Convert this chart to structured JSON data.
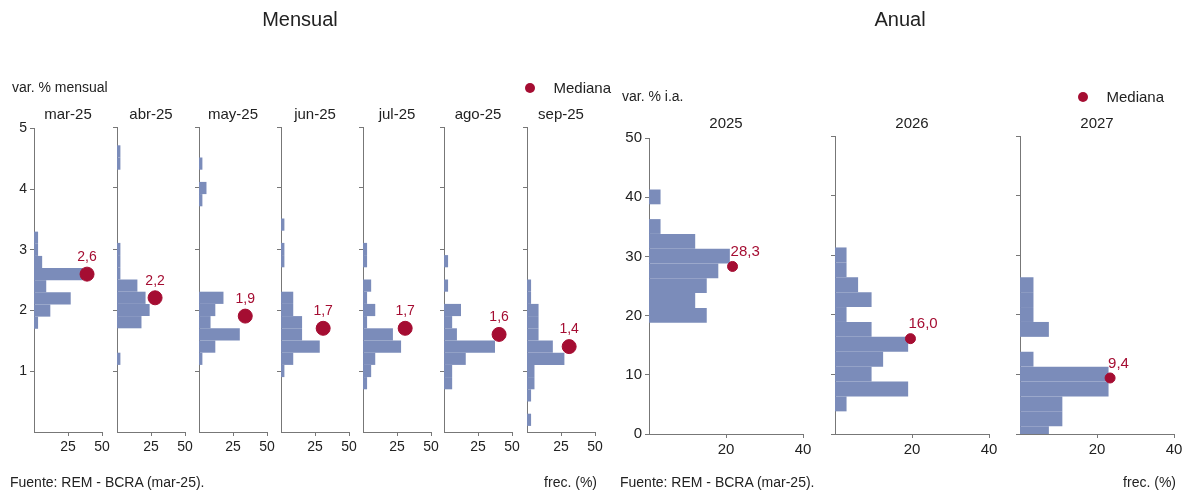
{
  "chart_data": [
    {
      "type": "histogram",
      "orientation": "horizontal",
      "title": "mar-25",
      "ylabel": "var. % mensual",
      "annotations": [
        "Mensual",
        "Fuente: REM - BCRA (mar-25).",
        {
          "text": "2,6",
          "x": 39,
          "y": 2.6
        }
      ],
      "xlim": [
        0,
        50
      ],
      "xticks": [
        25,
        50
      ],
      "ylim": [
        0,
        5
      ],
      "yticks": [
        1,
        2,
        3,
        4,
        5
      ],
      "marker": "circle",
      "series": [
        {
          "color": "#7b8cba",
          "bins": [
            1.7,
            1.9,
            2.1,
            2.3,
            2.5,
            2.7,
            2.9,
            3.1,
            3.3
          ],
          "values": [
            3,
            12,
            27,
            9,
            36,
            6,
            3,
            3
          ]
        },
        {
          "type": "scatter",
          "color": "#a50d32",
          "x": [
            2.6
          ],
          "values": [
            39
          ]
        }
      ]
    },
    {
      "type": "histogram",
      "orientation": "horizontal",
      "title": "abr-25",
      "tick_labels": "x",
      "annotations": [
        {
          "text": "2,2",
          "x": 28,
          "y": 2.2
        }
      ],
      "xlim": [
        0,
        50
      ],
      "xticks": [
        25,
        50
      ],
      "ylim": [
        0,
        5
      ],
      "yticks": [
        1,
        2,
        3,
        4,
        5
      ],
      "marker": "circle",
      "series": [
        {
          "color": "#7b8cba",
          "bins": [
            1.1,
            1.3,
            1.5,
            1.7,
            1.9,
            2.1,
            2.3,
            2.5,
            2.7,
            2.9,
            3.1,
            3.3,
            3.5,
            3.7,
            3.9,
            4.1,
            4.3,
            4.5,
            4.7
          ],
          "values": [
            2.5,
            0,
            0,
            18,
            24,
            21,
            15,
            2.5,
            2.5,
            2.5,
            0,
            0,
            0,
            0,
            0,
            0,
            2.5,
            2.5
          ]
        },
        {
          "type": "scatter",
          "color": "#a50d32",
          "x": [
            2.2
          ],
          "values": [
            28
          ]
        }
      ]
    },
    {
      "type": "histogram",
      "orientation": "horizontal",
      "title": "may-25",
      "tick_labels": "x",
      "annotations": [
        {
          "text": "1,9",
          "x": 34,
          "y": 1.9
        }
      ],
      "xlim": [
        0,
        50
      ],
      "xticks": [
        25,
        50
      ],
      "ylim": [
        0,
        5
      ],
      "yticks": [
        1,
        2,
        3,
        4,
        5
      ],
      "marker": "circle",
      "series": [
        {
          "color": "#7b8cba",
          "bins": [
            1.1,
            1.3,
            1.5,
            1.7,
            1.9,
            2.1,
            2.3,
            2.5,
            2.7,
            2.9,
            3.1,
            3.3,
            3.5,
            3.7,
            3.9,
            4.1,
            4.3,
            4.5
          ],
          "values": [
            2.5,
            12,
            30,
            8.5,
            12,
            18,
            0,
            0,
            0,
            0,
            0,
            0,
            0,
            2.5,
            5.5,
            0,
            2.5
          ]
        },
        {
          "type": "scatter",
          "color": "#a50d32",
          "x": [
            1.9
          ],
          "values": [
            34
          ]
        }
      ]
    },
    {
      "type": "histogram",
      "orientation": "horizontal",
      "title": "jun-25",
      "tick_labels": "x",
      "annotations": [
        {
          "text": "1,7",
          "x": 31,
          "y": 1.7
        }
      ],
      "xlim": [
        0,
        50
      ],
      "xticks": [
        25,
        50
      ],
      "ylim": [
        0,
        5
      ],
      "yticks": [
        1,
        2,
        3,
        4,
        5
      ],
      "marker": "circle",
      "series": [
        {
          "color": "#7b8cba",
          "bins": [
            0.9,
            1.1,
            1.3,
            1.5,
            1.7,
            1.9,
            2.1,
            2.3,
            2.5,
            2.7,
            2.9,
            3.1,
            3.3,
            3.5
          ],
          "values": [
            2.5,
            9,
            28.5,
            15.5,
            15.5,
            9,
            9,
            0,
            0,
            2.5,
            2.5,
            0,
            2.5
          ]
        },
        {
          "type": "scatter",
          "color": "#a50d32",
          "x": [
            1.7
          ],
          "values": [
            31
          ]
        }
      ]
    },
    {
      "type": "histogram",
      "orientation": "horizontal",
      "title": "jul-25",
      "tick_labels": "x",
      "annotations": [
        {
          "text": "1,7",
          "x": 31,
          "y": 1.7
        }
      ],
      "xlim": [
        0,
        50
      ],
      "xticks": [
        25,
        50
      ],
      "ylim": [
        0,
        5
      ],
      "yticks": [
        1,
        2,
        3,
        4,
        5
      ],
      "marker": "circle",
      "series": [
        {
          "color": "#7b8cba",
          "bins": [
            0.7,
            0.9,
            1.1,
            1.3,
            1.5,
            1.7,
            1.9,
            2.1,
            2.3,
            2.5,
            2.7,
            2.9,
            3.1
          ],
          "values": [
            3,
            6,
            9,
            28,
            22,
            3,
            9,
            3,
            6,
            0,
            3,
            3
          ]
        },
        {
          "type": "scatter",
          "color": "#a50d32",
          "x": [
            1.7
          ],
          "values": [
            31
          ]
        }
      ]
    },
    {
      "type": "histogram",
      "orientation": "horizontal",
      "title": "ago-25",
      "tick_labels": "x",
      "annotations": [
        {
          "text": "1,6",
          "x": 40.5,
          "y": 1.6
        }
      ],
      "xlim": [
        0,
        50
      ],
      "xticks": [
        25,
        50
      ],
      "ylim": [
        0,
        5
      ],
      "yticks": [
        1,
        2,
        3,
        4,
        5
      ],
      "marker": "circle",
      "series": [
        {
          "color": "#7b8cba",
          "bins": [
            0.7,
            0.9,
            1.1,
            1.3,
            1.5,
            1.7,
            1.9,
            2.1,
            2.3,
            2.5,
            2.7,
            2.9
          ],
          "values": [
            6,
            6,
            16,
            37.5,
            9.5,
            6,
            12.5,
            0,
            3,
            0,
            3
          ]
        },
        {
          "type": "scatter",
          "color": "#a50d32",
          "x": [
            1.6
          ],
          "values": [
            40.5
          ]
        }
      ]
    },
    {
      "type": "histogram",
      "orientation": "horizontal",
      "title": "sep-25",
      "xlabel": "frec. (%)",
      "legend": "top right",
      "tick_labels": "x",
      "annotations": [
        {
          "text": "1,4",
          "x": 31,
          "y": 1.4
        }
      ],
      "xlim": [
        0,
        50
      ],
      "xticks": [
        25,
        50
      ],
      "ylim": [
        0,
        5
      ],
      "yticks": [
        1,
        2,
        3,
        4,
        5
      ],
      "marker": "circle",
      "series": [
        {
          "color": "#7b8cba",
          "bins": [
            0.1,
            0.3,
            0.5,
            0.7,
            0.9,
            1.1,
            1.3,
            1.5,
            1.7,
            1.9,
            2.1,
            2.3,
            2.5
          ],
          "values": [
            3,
            0,
            3,
            5.5,
            5.5,
            27.5,
            19,
            8.5,
            8.5,
            8.5,
            3,
            3
          ]
        },
        {
          "type": "scatter",
          "name": "Mediana",
          "color": "#a50d32",
          "x": [
            1.4
          ],
          "values": [
            31
          ]
        }
      ]
    },
    {
      "type": "histogram",
      "orientation": "horizontal",
      "title": "2025",
      "ylabel": "var. % i.a.",
      "annotations": [
        "Anual",
        "Fuente: REM - BCRA (mar-25).",
        {
          "text": "28,3",
          "x": 21.7,
          "y": 28.3
        }
      ],
      "xlim": [
        0,
        40
      ],
      "xticks": [
        20,
        40
      ],
      "ylim": [
        0,
        50
      ],
      "yticks": [
        0,
        10,
        20,
        30,
        40,
        50
      ],
      "marker": "circle",
      "series": [
        {
          "color": "#7b8cba",
          "bins": [
            18.8,
            21.3,
            23.8,
            26.3,
            28.8,
            31.3,
            33.8,
            36.3,
            38.8,
            41.3
          ],
          "values": [
            15,
            12,
            15,
            18,
            21,
            12,
            3,
            0,
            3
          ]
        },
        {
          "type": "scatter",
          "color": "#a50d32",
          "x": [
            28.3
          ],
          "values": [
            21.7
          ]
        }
      ]
    },
    {
      "type": "histogram",
      "orientation": "horizontal",
      "title": "2026",
      "tick_labels": "x",
      "annotations": [
        {
          "text": "16,0",
          "x": 19.6,
          "y": 16.0
        }
      ],
      "xlim": [
        0,
        40
      ],
      "xticks": [
        20,
        40
      ],
      "ylim": [
        0,
        50
      ],
      "yticks": [
        0,
        10,
        20,
        30,
        40,
        50
      ],
      "marker": "circle",
      "series": [
        {
          "color": "#7b8cba",
          "bins": [
            3.8,
            6.3,
            8.8,
            11.3,
            13.8,
            16.3,
            18.8,
            21.3,
            23.8,
            26.3,
            28.8,
            31.3
          ],
          "values": [
            3,
            19,
            9.5,
            12.5,
            19,
            9.5,
            3,
            9.5,
            6,
            3,
            3
          ]
        },
        {
          "type": "scatter",
          "color": "#a50d32",
          "x": [
            16.0
          ],
          "values": [
            19.6
          ]
        }
      ]
    },
    {
      "type": "histogram",
      "orientation": "horizontal",
      "title": "2027",
      "xlabel": "frec. (%)",
      "legend": "top right",
      "tick_labels": "x",
      "annotations": [
        {
          "text": "9,4",
          "x": 23.4,
          "y": 9.4
        }
      ],
      "xlim": [
        0,
        40
      ],
      "xticks": [
        20,
        40
      ],
      "ylim": [
        0,
        50
      ],
      "yticks": [
        0,
        10,
        20,
        30,
        40,
        50
      ],
      "marker": "circle",
      "series": [
        {
          "color": "#7b8cba",
          "bins": [
            0,
            1.3,
            3.8,
            6.3,
            8.8,
            11.3,
            13.8,
            16.3,
            18.8,
            21.3,
            23.8,
            26.3
          ],
          "values": [
            7.5,
            11,
            11,
            23,
            23,
            3.5,
            0,
            7.5,
            3.5,
            3.5,
            3.5
          ]
        },
        {
          "type": "scatter",
          "name": "Mediana",
          "color": "#a50d32",
          "x": [
            9.4
          ],
          "values": [
            23.4
          ]
        }
      ]
    }
  ]
}
